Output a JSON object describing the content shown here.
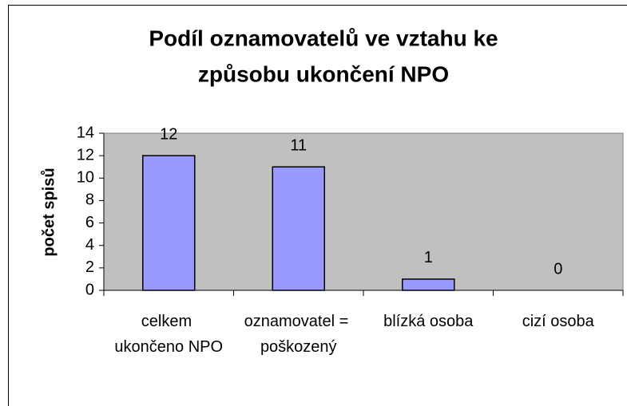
{
  "chart_data": {
    "type": "bar",
    "title": [
      "Podíl oznamovatelů ve vztahu ke",
      "způsobu ukončení  NPO"
    ],
    "y_label": "počet spisů",
    "categories": [
      "celkem ukončeno NPO",
      "oznamovatel = poškozený",
      "blízká osoba",
      "cizí osoba"
    ],
    "values": [
      12,
      11,
      1,
      0
    ],
    "color": "#9999ff",
    "plot_background": "#c0c0c0",
    "ylim": [
      0,
      14
    ],
    "yticks": [
      0,
      2,
      4,
      6,
      8,
      10,
      12,
      14
    ],
    "grid": false
  }
}
